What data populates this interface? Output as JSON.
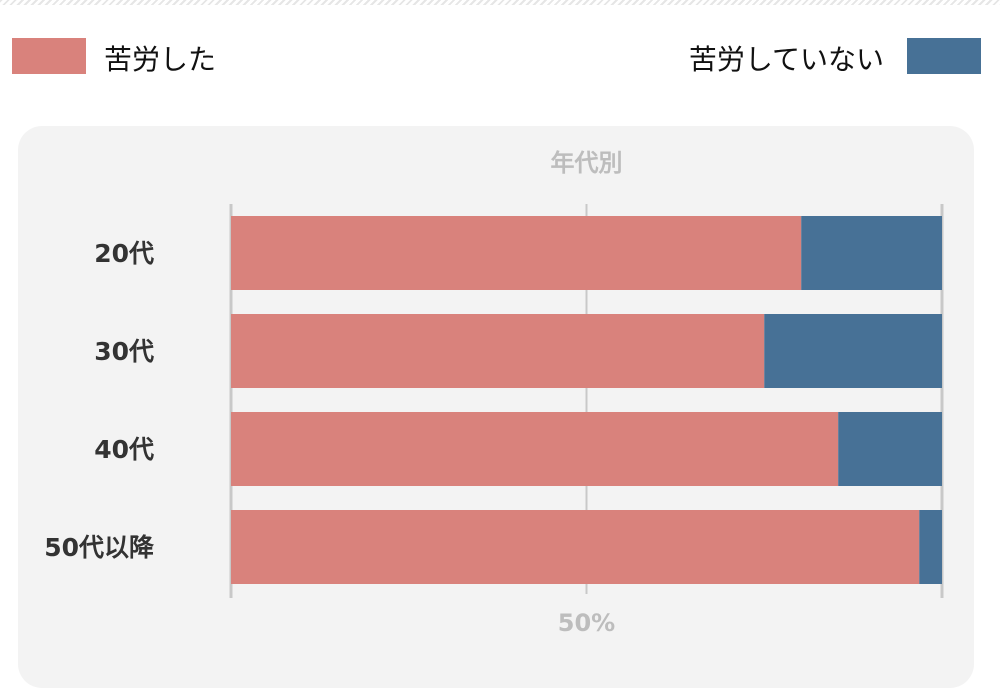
{
  "legend": {
    "left_label": "苦労した",
    "right_label": "苦労していない"
  },
  "colors": {
    "struggled": "#d9827c",
    "not_struggled": "#477196",
    "panel_bg": "#f3f3f3",
    "grid": "#c8c8c8",
    "muted_text": "#bdbdbd",
    "category_text": "#333333"
  },
  "chart_data": {
    "type": "bar",
    "orientation": "horizontal",
    "stacked": true,
    "title": "年代別",
    "categories": [
      "20代",
      "30代",
      "40代",
      "50代以降"
    ],
    "series": [
      {
        "name": "苦労した",
        "values": [
          80.2,
          75.0,
          85.4,
          96.8
        ]
      },
      {
        "name": "苦労していない",
        "values": [
          19.8,
          25.0,
          14.6,
          3.2
        ]
      }
    ],
    "xlim": [
      0,
      100
    ],
    "x_tick_label": "50%",
    "x_tick_value": 50,
    "xlabel": "",
    "ylabel": "",
    "legend_position": "top"
  }
}
